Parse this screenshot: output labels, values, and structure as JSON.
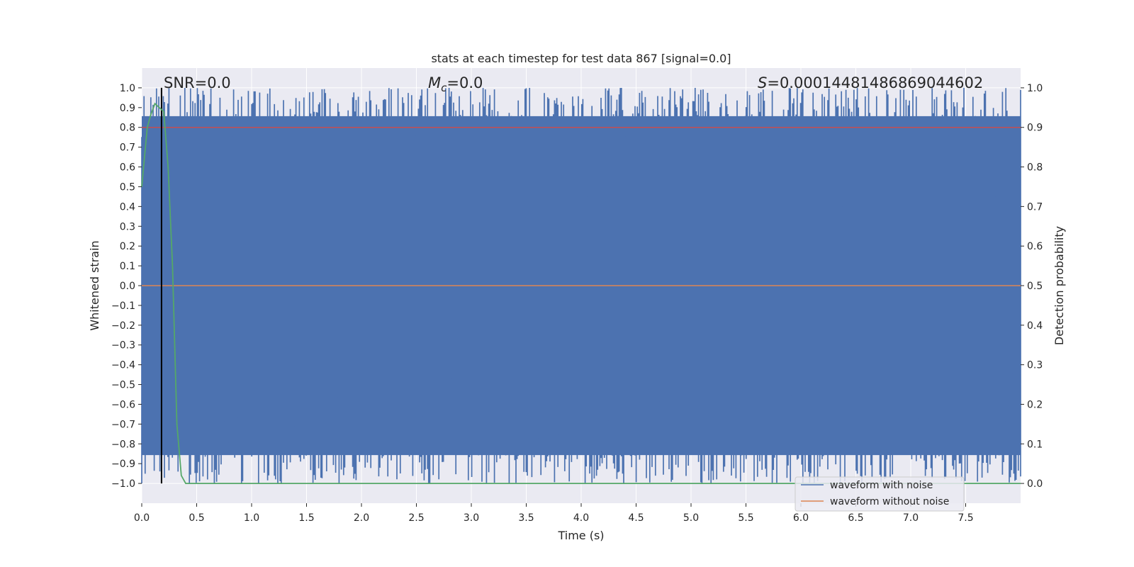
{
  "chart_data": {
    "type": "line",
    "title": "stats at each timestep for test data 867 [signal=0.0]",
    "xlabel": "Time (s)",
    "ylabel_left": "Whitened strain",
    "ylabel_right": "Detection probability",
    "xlim": [
      0.0,
      8.0
    ],
    "ylim_left": [
      -1.1,
      1.1
    ],
    "ylim_right": [
      -0.05,
      1.05
    ],
    "xticks": [
      "0.0",
      "0.5",
      "1.0",
      "1.5",
      "2.0",
      "2.5",
      "3.0",
      "3.5",
      "4.0",
      "4.5",
      "5.0",
      "5.5",
      "6.0",
      "6.5",
      "7.0",
      "7.5"
    ],
    "yticks_left": [
      "1.0",
      "0.9",
      "0.8",
      "0.7",
      "0.6",
      "0.5",
      "0.4",
      "0.3",
      "0.2",
      "0.1",
      "0.0",
      "−0.1",
      "−0.2",
      "−0.3",
      "−0.4",
      "−0.5",
      "−0.6",
      "−0.7",
      "−0.8",
      "−0.9",
      "−1.0"
    ],
    "yticks_right": [
      "1.0",
      "0.9",
      "0.8",
      "0.7",
      "0.6",
      "0.5",
      "0.4",
      "0.3",
      "0.2",
      "0.1",
      "0.0"
    ],
    "grid": true,
    "annotations": {
      "snr": "SNR=0.0",
      "mc_symbol": "M",
      "mc_sub": "c",
      "mc_value": "=0.0",
      "s_symbol": "S",
      "s_value": "=0.00014481486869044602"
    },
    "series": [
      {
        "name": "waveform with noise",
        "color": "#4c72b0",
        "axis": "left",
        "description": "dense noise spanning approximately -1.0 to 1.0 across 0-8 s"
      },
      {
        "name": "waveform without noise",
        "color": "#dd8452",
        "axis": "left",
        "values": "flat at 0.0"
      },
      {
        "name": "detection probability",
        "color": "#55a868",
        "axis": "right",
        "x": [
          0.0,
          0.05,
          0.08,
          0.12,
          0.16,
          0.2,
          0.24,
          0.28,
          0.32,
          0.36,
          0.4,
          8.0
        ],
        "y": [
          0.75,
          0.9,
          0.93,
          0.96,
          0.95,
          0.94,
          0.8,
          0.55,
          0.15,
          0.02,
          0.0,
          0.0
        ]
      }
    ],
    "threshold_line": {
      "axis": "right",
      "value": 0.9,
      "color": "#c44e52"
    },
    "vertical_line": {
      "x": 0.18,
      "color": "#000000"
    },
    "legend": {
      "position": "bottom-right",
      "entries": [
        "waveform with noise",
        "waveform without noise"
      ]
    }
  }
}
